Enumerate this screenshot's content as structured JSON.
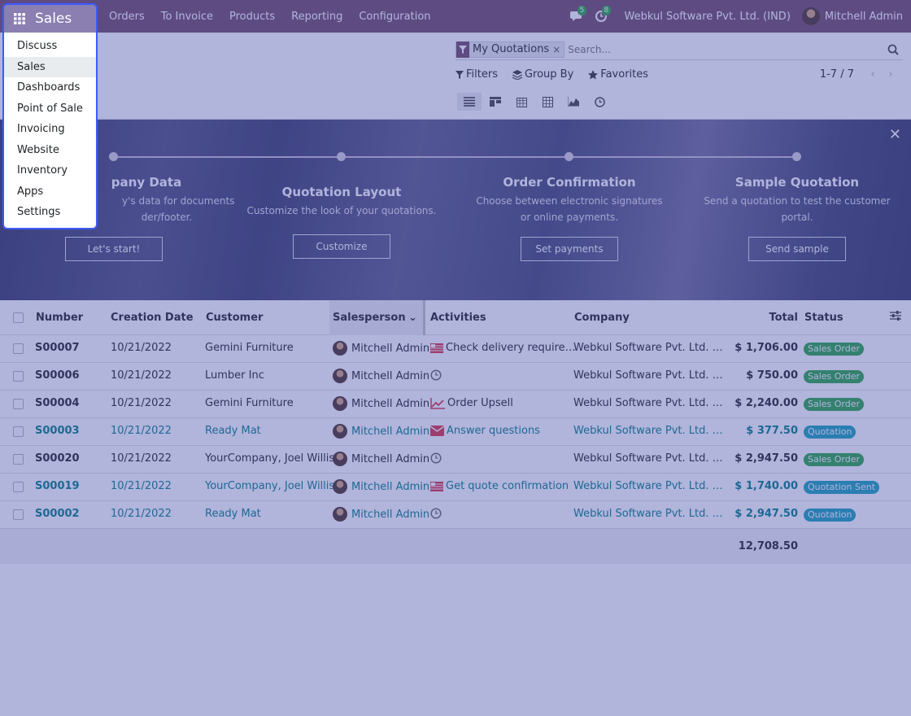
{
  "navbar": {
    "brand": "Sales",
    "menu": [
      "Orders",
      "To Invoice",
      "Products",
      "Reporting",
      "Configuration"
    ],
    "messages_count": "5",
    "activities_count": "8",
    "company": "Webkul Software Pvt. Ltd. (IND)",
    "user": "Mitchell Admin"
  },
  "app_menu": {
    "items": [
      "Discuss",
      "Sales",
      "Dashboards",
      "Point of Sale",
      "Invoicing",
      "Website",
      "Inventory",
      "Apps",
      "Settings"
    ],
    "active": "Sales"
  },
  "search": {
    "facet": "My Quotations",
    "placeholder": "Search...",
    "filters_label": "Filters",
    "groupby_label": "Group By",
    "favorites_label": "Favorites",
    "pager": "1-7 / 7"
  },
  "banner": {
    "steps": [
      {
        "title": "pany Data",
        "desc": "y's data for documents",
        "desc2": "der/footer.",
        "button": "Let's start!"
      },
      {
        "title": "Quotation Layout",
        "desc": "Customize the look of your quotations.",
        "desc2": "",
        "button": "Customize"
      },
      {
        "title": "Order Confirmation",
        "desc": "Choose between electronic signatures",
        "desc2": "or online payments.",
        "button": "Set payments"
      },
      {
        "title": "Sample Quotation",
        "desc": "Send a quotation to test the customer",
        "desc2": "portal.",
        "button": "Send sample"
      }
    ]
  },
  "table": {
    "headers": [
      "Number",
      "Creation Date",
      "Customer",
      "Salesperson",
      "Activities",
      "Company",
      "Total",
      "Status"
    ],
    "rows": [
      {
        "number": "S00007",
        "date": "10/21/2022",
        "customer": "Gemini Furniture",
        "salesperson": "Mitchell Admin",
        "activity": "Check delivery require…",
        "activity_icon": "calendar-flag",
        "company": "Webkul Software Pvt. Ltd. …",
        "total": "$ 1,706.00",
        "status": "Sales Order",
        "highlight": false
      },
      {
        "number": "S00006",
        "date": "10/21/2022",
        "customer": "Lumber Inc",
        "salesperson": "Mitchell Admin",
        "activity": "",
        "activity_icon": "clock",
        "company": "Webkul Software Pvt. Ltd. …",
        "total": "$ 750.00",
        "status": "Sales Order",
        "highlight": false
      },
      {
        "number": "S00004",
        "date": "10/21/2022",
        "customer": "Gemini Furniture",
        "salesperson": "Mitchell Admin",
        "activity": "Order Upsell",
        "activity_icon": "chart",
        "company": "Webkul Software Pvt. Ltd. …",
        "total": "$ 2,240.00",
        "status": "Sales Order",
        "highlight": false
      },
      {
        "number": "S00003",
        "date": "10/21/2022",
        "customer": "Ready Mat",
        "salesperson": "Mitchell Admin",
        "activity": "Answer questions",
        "activity_icon": "envelope",
        "company": "Webkul Software Pvt. Ltd. …",
        "total": "$ 377.50",
        "status": "Quotation",
        "highlight": true
      },
      {
        "number": "S00020",
        "date": "10/21/2022",
        "customer": "YourCompany, Joel Willis",
        "salesperson": "Mitchell Admin",
        "activity": "",
        "activity_icon": "clock",
        "company": "Webkul Software Pvt. Ltd. …",
        "total": "$ 2,947.50",
        "status": "Sales Order",
        "highlight": false
      },
      {
        "number": "S00019",
        "date": "10/21/2022",
        "customer": "YourCompany, Joel Willis",
        "salesperson": "Mitchell Admin",
        "activity": "Get quote confirmation",
        "activity_icon": "calendar-flag",
        "company": "Webkul Software Pvt. Ltd. …",
        "total": "$ 1,740.00",
        "status": "Quotation Sent",
        "highlight": true
      },
      {
        "number": "S00002",
        "date": "10/21/2022",
        "customer": "Ready Mat",
        "salesperson": "Mitchell Admin",
        "activity": "",
        "activity_icon": "clock",
        "company": "Webkul Software Pvt. Ltd. …",
        "total": "$ 2,947.50",
        "status": "Quotation",
        "highlight": true
      }
    ],
    "sum": "12,708.50"
  },
  "colors": {
    "brand": "#714b67",
    "overlay": "#464caa",
    "link": "#017e84",
    "badge_order": "#28a745",
    "badge_quote": "#17a2b8"
  }
}
